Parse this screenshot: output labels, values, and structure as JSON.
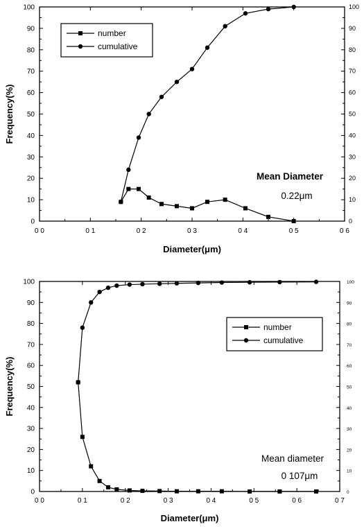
{
  "chart_data": [
    {
      "type": "line",
      "xlabel": "Diameter(μm)",
      "ylabel": "Frequency(%)",
      "xlim": [
        0.0,
        0.6
      ],
      "ylim": [
        0,
        100
      ],
      "x_ticks": [
        "0 0",
        "0 1",
        "0 2",
        "0 3",
        "0 4",
        "0 5",
        "0 6"
      ],
      "y_ticks": [
        "0",
        "10",
        "20",
        "30",
        "40",
        "50",
        "60",
        "70",
        "80",
        "90",
        "100"
      ],
      "right_y_ticks": [
        "0",
        "10",
        "20",
        "30",
        "40",
        "50",
        "60",
        "70",
        "80",
        "90",
        "100"
      ],
      "legend_position": "top-left",
      "annotation": [
        "Mean Diameter",
        "0.22μm"
      ],
      "series": [
        {
          "name": "number",
          "marker": "square",
          "x": [
            0.16,
            0.175,
            0.195,
            0.215,
            0.24,
            0.27,
            0.3,
            0.33,
            0.365,
            0.405,
            0.45,
            0.5
          ],
          "y": [
            9,
            15,
            15,
            11,
            8,
            7,
            6,
            9,
            10,
            6,
            2,
            0
          ]
        },
        {
          "name": "cumulative",
          "marker": "circle",
          "x": [
            0.16,
            0.175,
            0.195,
            0.215,
            0.24,
            0.27,
            0.3,
            0.33,
            0.365,
            0.405,
            0.45,
            0.5
          ],
          "y": [
            9,
            24,
            39,
            50,
            58,
            65,
            71,
            81,
            91,
            97,
            99,
            100
          ]
        }
      ]
    },
    {
      "type": "line",
      "xlabel": "Diameter(μm)",
      "ylabel": "Frequency(%)",
      "xlim": [
        0.0,
        0.7
      ],
      "ylim": [
        0,
        100
      ],
      "x_ticks": [
        "0 0",
        "0 1",
        "0 2",
        "0 3",
        "0 4",
        "0 5",
        "0 6",
        "0 7"
      ],
      "y_ticks": [
        "0",
        "10",
        "20",
        "30",
        "40",
        "50",
        "60",
        "70",
        "80",
        "90",
        "100"
      ],
      "right_y_ticks": [
        "0",
        "10",
        "20",
        "30",
        "40",
        "50",
        "60",
        "70",
        "80",
        "90",
        "100"
      ],
      "legend_position": "top-right",
      "annotation": [
        "Mean diameter",
        "0 107μm"
      ],
      "series": [
        {
          "name": "number",
          "marker": "square",
          "x": [
            0.09,
            0.1,
            0.12,
            0.14,
            0.16,
            0.18,
            0.21,
            0.24,
            0.28,
            0.32,
            0.37,
            0.425,
            0.49,
            0.56,
            0.645
          ],
          "y": [
            52,
            26,
            12,
            5,
            2,
            1,
            0.5,
            0.3,
            0.2,
            0.1,
            0.1,
            0.1,
            0,
            0,
            0
          ]
        },
        {
          "name": "cumulative",
          "marker": "circle",
          "x": [
            0.09,
            0.1,
            0.12,
            0.14,
            0.16,
            0.18,
            0.21,
            0.24,
            0.28,
            0.32,
            0.37,
            0.425,
            0.49,
            0.56,
            0.645
          ],
          "y": [
            52,
            78,
            90,
            95,
            97,
            98,
            98.5,
            98.7,
            98.9,
            99.1,
            99.3,
            99.5,
            99.6,
            99.7,
            99.8
          ]
        }
      ]
    }
  ]
}
